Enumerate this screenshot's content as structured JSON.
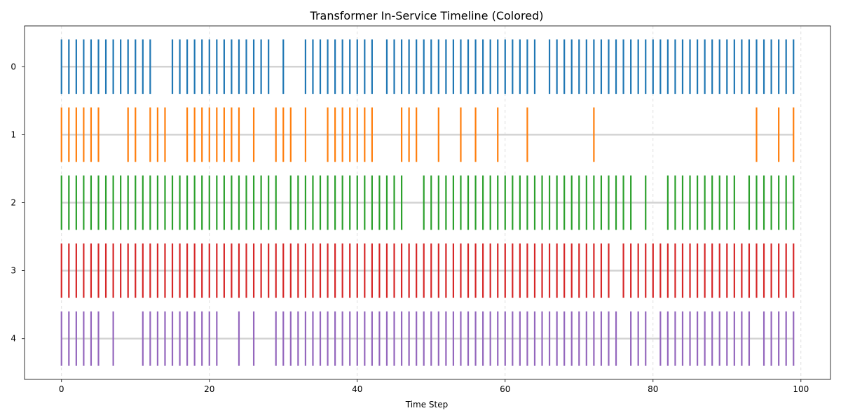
{
  "chart_data": {
    "type": "eventplot",
    "title": "Transformer In-Service Timeline (Colored)",
    "xlabel": "Time Step",
    "ylabel": "",
    "xlim": [
      -5,
      104
    ],
    "ylim": [
      4.6,
      -0.6
    ],
    "xticks": [
      0,
      20,
      40,
      60,
      80,
      100
    ],
    "yticks": [
      0,
      1,
      2,
      3,
      4
    ],
    "grid": "x-dashed",
    "series": [
      {
        "row": 0,
        "color": "#1f77b4",
        "times": [
          0,
          1,
          2,
          3,
          4,
          5,
          6,
          7,
          8,
          9,
          10,
          11,
          12,
          15,
          16,
          17,
          18,
          19,
          20,
          21,
          22,
          23,
          24,
          25,
          26,
          27,
          28,
          30,
          33,
          34,
          35,
          36,
          37,
          38,
          39,
          40,
          41,
          42,
          44,
          45,
          46,
          47,
          48,
          49,
          50,
          51,
          52,
          53,
          54,
          55,
          56,
          57,
          58,
          59,
          60,
          61,
          62,
          63,
          64,
          66,
          67,
          68,
          69,
          70,
          71,
          72,
          73,
          74,
          75,
          76,
          77,
          78,
          79,
          80,
          81,
          82,
          83,
          84,
          85,
          86,
          87,
          88,
          89,
          90,
          91,
          92,
          93,
          94,
          95,
          96,
          97,
          98,
          99
        ]
      },
      {
        "row": 1,
        "color": "#ff7f0e",
        "times": [
          0,
          1,
          2,
          3,
          4,
          5,
          9,
          10,
          12,
          13,
          14,
          17,
          18,
          19,
          20,
          21,
          22,
          23,
          24,
          26,
          29,
          30,
          31,
          33,
          36,
          37,
          38,
          39,
          40,
          41,
          42,
          46,
          47,
          48,
          51,
          54,
          56,
          59,
          63,
          72,
          94,
          97,
          99
        ]
      },
      {
        "row": 2,
        "color": "#2ca02c",
        "times": [
          0,
          1,
          2,
          3,
          4,
          5,
          6,
          7,
          8,
          9,
          10,
          11,
          12,
          13,
          14,
          15,
          16,
          17,
          18,
          19,
          20,
          21,
          22,
          23,
          24,
          25,
          26,
          27,
          28,
          29,
          31,
          32,
          33,
          34,
          35,
          36,
          37,
          38,
          39,
          40,
          41,
          42,
          43,
          44,
          45,
          46,
          49,
          50,
          51,
          52,
          53,
          54,
          55,
          56,
          57,
          58,
          59,
          60,
          61,
          62,
          63,
          64,
          65,
          66,
          67,
          68,
          69,
          70,
          71,
          72,
          73,
          74,
          75,
          76,
          77,
          79,
          82,
          83,
          84,
          85,
          86,
          87,
          88,
          89,
          90,
          91,
          93,
          94,
          95,
          96,
          97,
          98,
          99
        ]
      },
      {
        "row": 3,
        "color": "#d62728",
        "times": [
          0,
          1,
          2,
          3,
          4,
          5,
          6,
          7,
          8,
          9,
          10,
          11,
          12,
          13,
          14,
          15,
          16,
          17,
          18,
          19,
          20,
          21,
          22,
          23,
          24,
          25,
          26,
          27,
          28,
          29,
          30,
          31,
          32,
          33,
          34,
          35,
          36,
          37,
          38,
          39,
          40,
          41,
          42,
          43,
          44,
          45,
          46,
          47,
          48,
          49,
          50,
          51,
          52,
          53,
          54,
          55,
          56,
          57,
          58,
          59,
          60,
          61,
          62,
          63,
          64,
          65,
          66,
          67,
          68,
          69,
          70,
          71,
          72,
          73,
          74,
          76,
          77,
          78,
          79,
          80,
          81,
          82,
          83,
          84,
          85,
          86,
          87,
          88,
          89,
          90,
          91,
          92,
          93,
          94,
          95,
          96,
          97,
          98,
          99
        ]
      },
      {
        "row": 4,
        "color": "#9467bd",
        "times": [
          0,
          1,
          2,
          3,
          4,
          5,
          7,
          11,
          12,
          13,
          14,
          15,
          16,
          17,
          18,
          19,
          20,
          21,
          24,
          26,
          29,
          30,
          31,
          32,
          33,
          34,
          35,
          36,
          37,
          38,
          39,
          40,
          41,
          42,
          43,
          44,
          45,
          46,
          47,
          48,
          49,
          50,
          51,
          52,
          53,
          54,
          55,
          56,
          57,
          58,
          59,
          60,
          61,
          62,
          63,
          64,
          65,
          66,
          67,
          68,
          69,
          70,
          71,
          72,
          73,
          74,
          75,
          77,
          78,
          79,
          81,
          82,
          83,
          84,
          85,
          86,
          87,
          88,
          89,
          90,
          91,
          92,
          93,
          95,
          96,
          97,
          98,
          99
        ]
      }
    ],
    "baseline_color": "#d3d3d3"
  }
}
